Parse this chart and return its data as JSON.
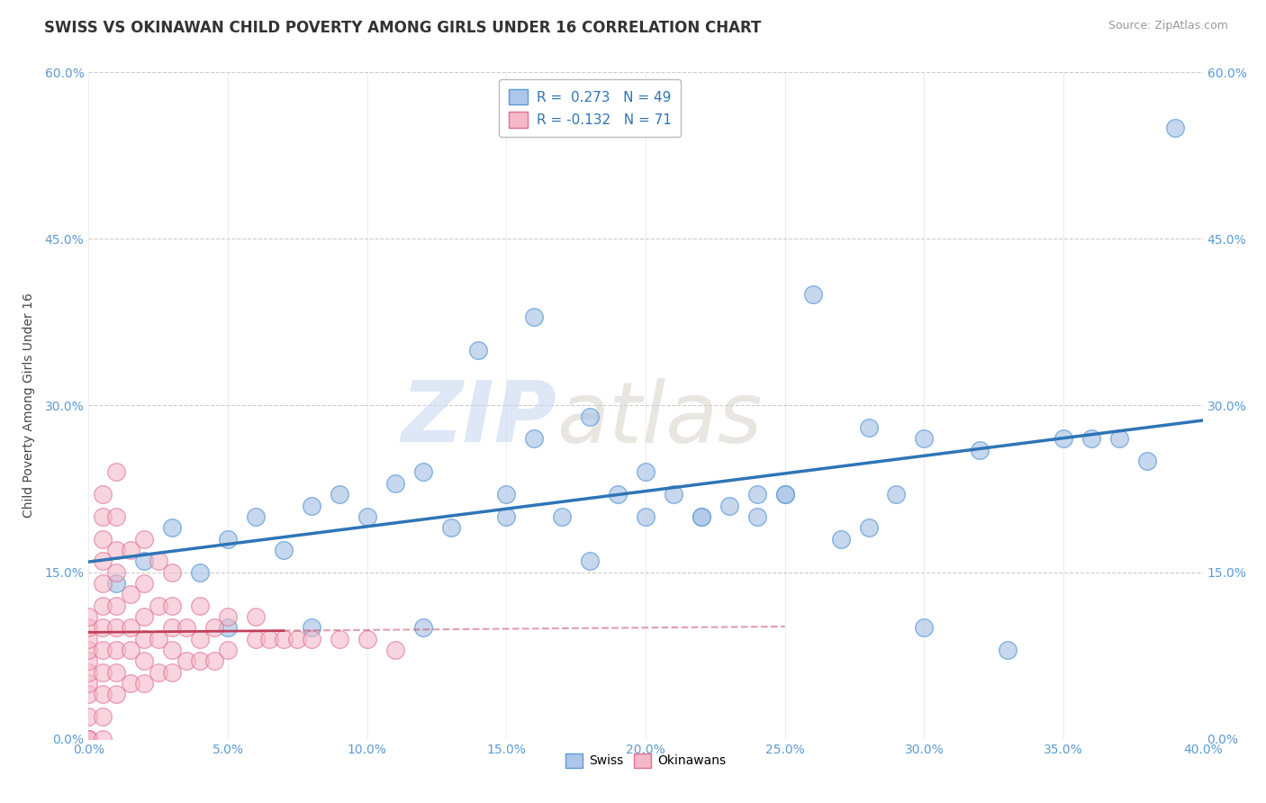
{
  "title": "SWISS VS OKINAWAN CHILD POVERTY AMONG GIRLS UNDER 16 CORRELATION CHART",
  "source": "Source: ZipAtlas.com",
  "xlim": [
    0.0,
    0.4
  ],
  "ylim": [
    0.0,
    0.6
  ],
  "swiss_R": 0.273,
  "swiss_N": 49,
  "okinawan_R": -0.132,
  "okinawan_N": 71,
  "swiss_color": "#aec6e8",
  "swiss_edge_color": "#5b9bd5",
  "swiss_line_color": "#2e75b6",
  "okinawan_color": "#f4b8c8",
  "okinawan_edge_color": "#e07090",
  "okinawan_line_color": "#c0405a",
  "watermark_zip": "ZIP",
  "watermark_atlas": "atlas",
  "background_color": "#ffffff",
  "grid_color": "#cccccc",
  "title_fontsize": 12,
  "source_fontsize": 9,
  "tick_fontsize": 10,
  "ylabel_fontsize": 10,
  "legend_fontsize": 11,
  "swiss_x": [
    0.01,
    0.02,
    0.03,
    0.04,
    0.05,
    0.06,
    0.07,
    0.08,
    0.09,
    0.1,
    0.11,
    0.12,
    0.13,
    0.14,
    0.15,
    0.16,
    0.17,
    0.18,
    0.19,
    0.2,
    0.21,
    0.22,
    0.23,
    0.24,
    0.25,
    0.26,
    0.27,
    0.28,
    0.29,
    0.3,
    0.15,
    0.16,
    0.18,
    0.2,
    0.22,
    0.24,
    0.25,
    0.28,
    0.3,
    0.32,
    0.35,
    0.36,
    0.37,
    0.38,
    0.39,
    0.05,
    0.08,
    0.12,
    0.33
  ],
  "swiss_y": [
    0.14,
    0.16,
    0.19,
    0.15,
    0.18,
    0.2,
    0.17,
    0.21,
    0.22,
    0.2,
    0.23,
    0.24,
    0.19,
    0.35,
    0.22,
    0.38,
    0.2,
    0.16,
    0.22,
    0.2,
    0.22,
    0.2,
    0.21,
    0.2,
    0.22,
    0.4,
    0.18,
    0.19,
    0.22,
    0.1,
    0.2,
    0.27,
    0.29,
    0.24,
    0.2,
    0.22,
    0.22,
    0.28,
    0.27,
    0.26,
    0.27,
    0.27,
    0.27,
    0.25,
    0.55,
    0.1,
    0.1,
    0.1,
    0.08
  ],
  "okinawan_x": [
    0.0,
    0.0,
    0.0,
    0.0,
    0.0,
    0.0,
    0.0,
    0.0,
    0.0,
    0.0,
    0.0,
    0.0,
    0.005,
    0.005,
    0.005,
    0.005,
    0.005,
    0.005,
    0.005,
    0.005,
    0.005,
    0.005,
    0.005,
    0.005,
    0.01,
    0.01,
    0.01,
    0.01,
    0.01,
    0.01,
    0.01,
    0.01,
    0.01,
    0.015,
    0.015,
    0.015,
    0.015,
    0.015,
    0.02,
    0.02,
    0.02,
    0.02,
    0.02,
    0.02,
    0.025,
    0.025,
    0.025,
    0.025,
    0.03,
    0.03,
    0.03,
    0.03,
    0.03,
    0.035,
    0.035,
    0.04,
    0.04,
    0.04,
    0.045,
    0.045,
    0.05,
    0.05,
    0.06,
    0.06,
    0.065,
    0.07,
    0.075,
    0.08,
    0.09,
    0.1,
    0.11
  ],
  "okinawan_y": [
    0.0,
    0.0,
    0.0,
    0.02,
    0.04,
    0.05,
    0.06,
    0.07,
    0.08,
    0.09,
    0.1,
    0.11,
    0.0,
    0.02,
    0.04,
    0.06,
    0.08,
    0.1,
    0.12,
    0.14,
    0.16,
    0.18,
    0.2,
    0.22,
    0.04,
    0.06,
    0.08,
    0.1,
    0.12,
    0.15,
    0.17,
    0.2,
    0.24,
    0.05,
    0.08,
    0.1,
    0.13,
    0.17,
    0.05,
    0.07,
    0.09,
    0.11,
    0.14,
    0.18,
    0.06,
    0.09,
    0.12,
    0.16,
    0.06,
    0.08,
    0.1,
    0.12,
    0.15,
    0.07,
    0.1,
    0.07,
    0.09,
    0.12,
    0.07,
    0.1,
    0.08,
    0.11,
    0.09,
    0.11,
    0.09,
    0.09,
    0.09,
    0.09,
    0.09,
    0.09,
    0.08
  ],
  "ytick_vals": [
    0.0,
    0.15,
    0.3,
    0.45,
    0.6
  ],
  "xtick_vals": [
    0.0,
    0.05,
    0.1,
    0.15,
    0.2,
    0.25,
    0.3,
    0.35,
    0.4
  ]
}
